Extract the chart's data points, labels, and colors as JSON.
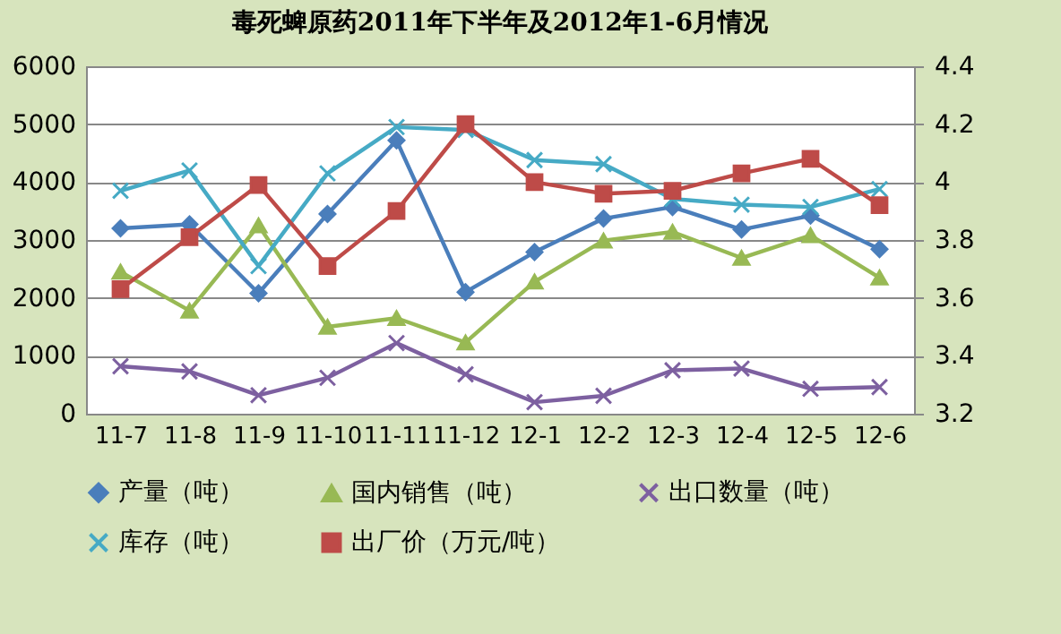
{
  "chart_data": {
    "type": "line",
    "title": "毒死蜱原药2011年下半年及2012年1-6月情况",
    "categories": [
      "11-7",
      "11-8",
      "11-9",
      "11-10",
      "11-11",
      "11-12",
      "12-1",
      "12-2",
      "12-3",
      "12-4",
      "12-5",
      "12-6"
    ],
    "series": [
      {
        "name": "产量（吨）",
        "color": "#4a7ebb",
        "marker": "diamond",
        "values": [
          3200,
          3270,
          2080,
          3450,
          4720,
          2100,
          2790,
          3370,
          3570,
          3180,
          3420,
          2840
        ]
      },
      {
        "name": "国内销售（吨）",
        "color": "#98b954",
        "marker": "triangle",
        "values": [
          2450,
          1780,
          3250,
          1500,
          1650,
          1230,
          2280,
          2990,
          3140,
          2690,
          3080,
          2350
        ]
      },
      {
        "name": "出口数量（吨）",
        "color": "#7d60a0",
        "marker": "cross",
        "values": [
          820,
          730,
          320,
          620,
          1220,
          680,
          200,
          310,
          750,
          780,
          430,
          460
        ]
      },
      {
        "name": "库存（吨）",
        "color": "#46aac5",
        "marker": "cross",
        "values": [
          3850,
          4200,
          2550,
          4150,
          4950,
          4900,
          4380,
          4310,
          3710,
          3610,
          3570,
          3880
        ]
      },
      {
        "name": "出厂价（万元/吨）",
        "color": "#be4b48",
        "marker": "square",
        "axis": "y2",
        "values": [
          3.63,
          3.81,
          3.99,
          3.71,
          3.9,
          4.2,
          4.0,
          3.96,
          3.97,
          4.03,
          4.08,
          3.92
        ]
      }
    ],
    "ylim": [
      0,
      6000
    ],
    "yticks": [
      0,
      1000,
      2000,
      3000,
      4000,
      5000,
      6000
    ],
    "y2lim": [
      3.2,
      4.4
    ],
    "y2ticks": [
      3.2,
      3.4,
      3.6,
      3.8,
      4,
      4.2,
      4.4
    ],
    "grid": "y",
    "legend": "bottom",
    "line_style": "solid"
  }
}
